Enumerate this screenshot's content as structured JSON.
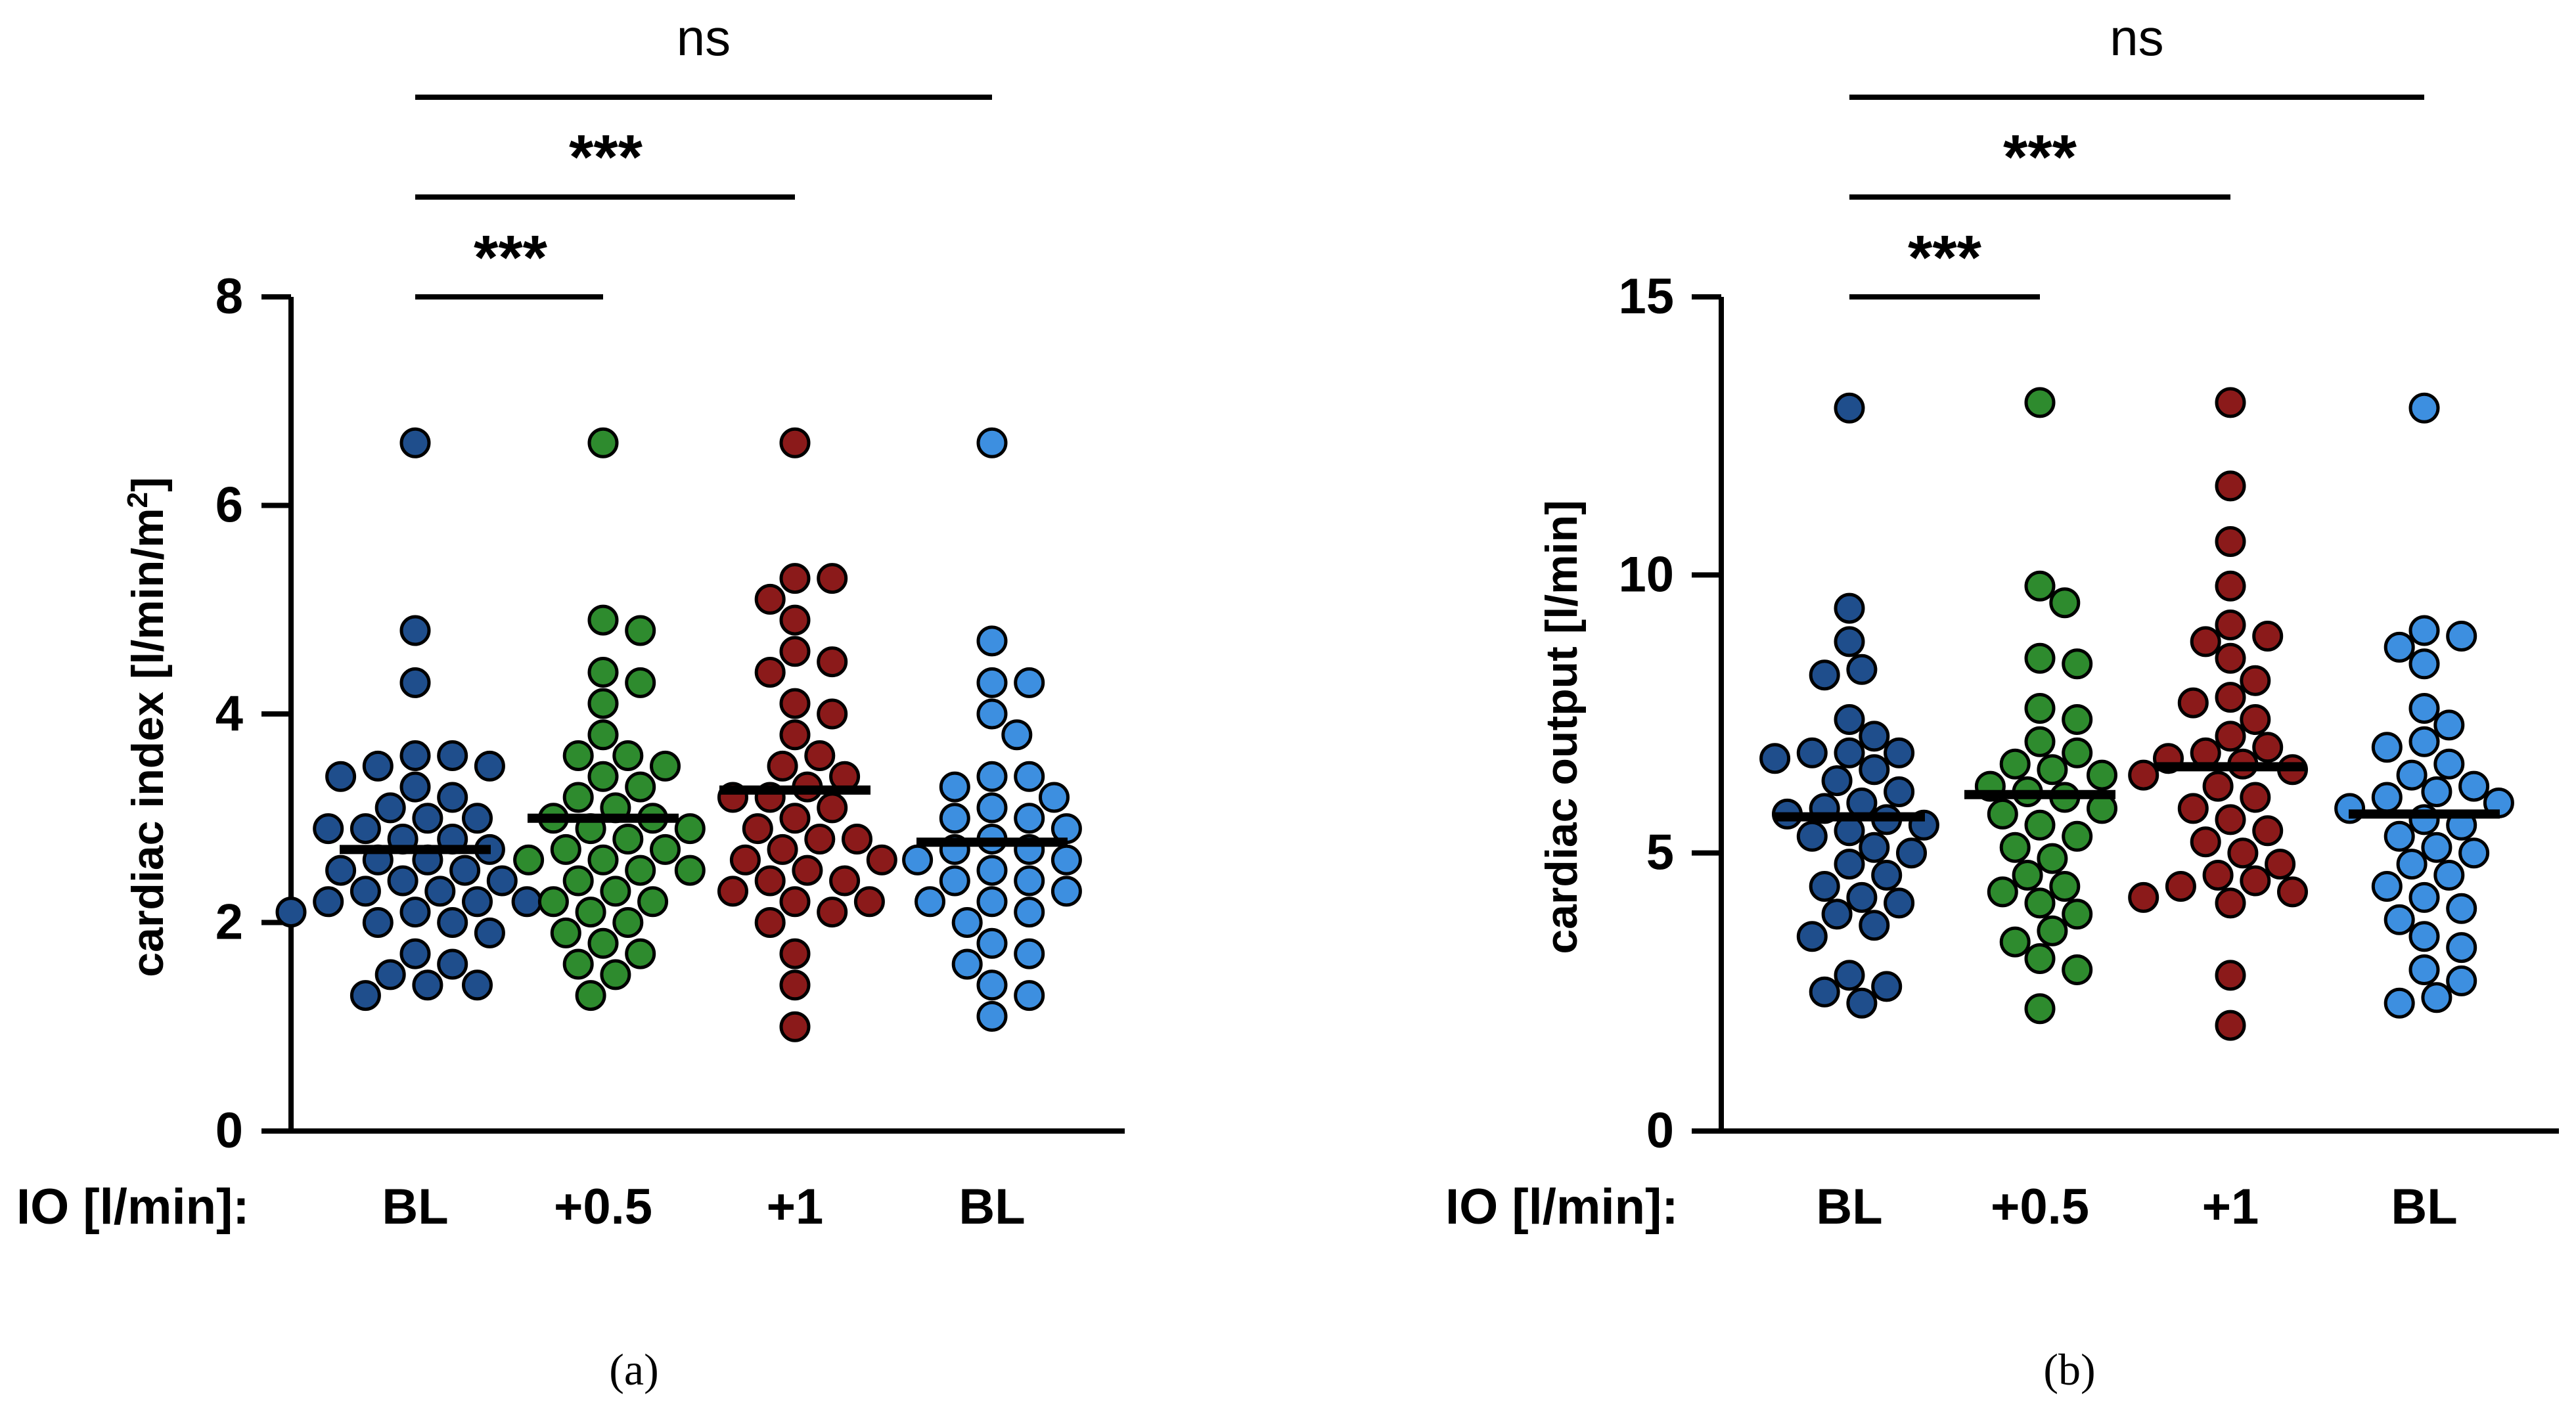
{
  "chart_data": [
    {
      "type": "scatter",
      "panel_label": "(a)",
      "ylabel_main": "cardiac index [l/min/m",
      "ylabel_sup": "2",
      "ylabel_end": "]",
      "ylim": [
        0,
        8
      ],
      "yticks": [
        0,
        2,
        4,
        6,
        8
      ],
      "xaxis_title": "IO [l/min]:",
      "categories": [
        "BL",
        "+0.5",
        "+1",
        "BL"
      ],
      "colors": [
        "#1f4e8c",
        "#2e8b2e",
        "#8b1a1a",
        "#3d8fe0"
      ],
      "series": [
        {
          "name": "BL",
          "mean": 2.7,
          "values": [
            6.6,
            4.8,
            4.3,
            3.6,
            3.6,
            3.5,
            3.5,
            3.4,
            3.3,
            3.2,
            3.1,
            3.0,
            3.0,
            2.9,
            2.9,
            2.8,
            2.8,
            2.7,
            2.6,
            2.6,
            2.5,
            2.5,
            2.4,
            2.4,
            2.3,
            2.3,
            2.2,
            2.2,
            2.2,
            2.1,
            2.1,
            2.0,
            2.0,
            1.9,
            1.7,
            1.6,
            1.5,
            1.4,
            1.4,
            1.3
          ]
        },
        {
          "name": "+0.5",
          "mean": 3.0,
          "values": [
            6.6,
            4.9,
            4.8,
            4.4,
            4.3,
            4.1,
            3.8,
            3.6,
            3.6,
            3.5,
            3.4,
            3.3,
            3.2,
            3.1,
            3.0,
            3.0,
            2.9,
            2.9,
            2.8,
            2.7,
            2.7,
            2.6,
            2.6,
            2.5,
            2.5,
            2.4,
            2.3,
            2.2,
            2.2,
            2.1,
            2.0,
            1.9,
            1.8,
            1.7,
            1.6,
            1.5,
            1.3
          ]
        },
        {
          "name": "+1",
          "mean": 3.27,
          "values": [
            6.6,
            5.3,
            5.3,
            5.1,
            4.9,
            4.6,
            4.5,
            4.4,
            4.1,
            4.0,
            3.8,
            3.6,
            3.5,
            3.4,
            3.3,
            3.2,
            3.2,
            3.1,
            3.0,
            2.9,
            2.8,
            2.8,
            2.7,
            2.6,
            2.6,
            2.5,
            2.4,
            2.4,
            2.3,
            2.2,
            2.2,
            2.1,
            2.0,
            1.7,
            1.4,
            1.0
          ]
        },
        {
          "name": "BL",
          "mean": 2.77,
          "values": [
            6.6,
            4.7,
            4.3,
            4.3,
            4.0,
            3.8,
            3.4,
            3.4,
            3.3,
            3.2,
            3.1,
            3.0,
            3.0,
            2.9,
            2.8,
            2.7,
            2.7,
            2.6,
            2.6,
            2.5,
            2.4,
            2.4,
            2.3,
            2.2,
            2.2,
            2.1,
            2.0,
            1.8,
            1.7,
            1.6,
            1.4,
            1.3,
            1.1
          ]
        }
      ],
      "brackets": [
        {
          "from": 0,
          "to": 1,
          "label": "***"
        },
        {
          "from": 0,
          "to": 2,
          "label": "***"
        },
        {
          "from": 0,
          "to": 3,
          "label": "ns"
        }
      ]
    },
    {
      "type": "scatter",
      "panel_label": "(b)",
      "ylabel_main": "cardiac output [l/min]",
      "ylabel_sup": "",
      "ylabel_end": "",
      "ylim": [
        0,
        15
      ],
      "yticks": [
        0,
        5,
        10,
        15
      ],
      "xaxis_title": "IO [l/min]:",
      "categories": [
        "BL",
        "+0.5",
        "+1",
        "BL"
      ],
      "colors": [
        "#1f4e8c",
        "#2e8b2e",
        "#8b1a1a",
        "#3d8fe0"
      ],
      "series": [
        {
          "name": "BL",
          "mean": 5.65,
          "values": [
            13.0,
            9.4,
            8.8,
            8.3,
            8.2,
            7.4,
            7.1,
            6.8,
            6.8,
            6.8,
            6.7,
            6.5,
            6.3,
            6.1,
            5.9,
            5.8,
            5.7,
            5.6,
            5.5,
            5.4,
            5.3,
            5.1,
            5.0,
            4.8,
            4.6,
            4.4,
            4.2,
            4.1,
            3.9,
            3.7,
            3.5,
            2.8,
            2.6,
            2.5,
            2.3
          ]
        },
        {
          "name": "+0.5",
          "mean": 6.05,
          "values": [
            13.1,
            9.8,
            9.5,
            8.5,
            8.4,
            7.6,
            7.4,
            7.0,
            6.8,
            6.6,
            6.5,
            6.4,
            6.2,
            6.1,
            6.0,
            5.8,
            5.7,
            5.5,
            5.3,
            5.1,
            4.9,
            4.6,
            4.4,
            4.3,
            4.1,
            3.9,
            3.6,
            3.4,
            3.1,
            2.9,
            2.2
          ]
        },
        {
          "name": "+1",
          "mean": 6.55,
          "values": [
            13.1,
            11.6,
            10.6,
            9.8,
            9.1,
            8.9,
            8.8,
            8.5,
            8.1,
            7.8,
            7.7,
            7.4,
            7.1,
            6.9,
            6.8,
            6.7,
            6.6,
            6.5,
            6.4,
            6.2,
            6.0,
            5.8,
            5.6,
            5.4,
            5.2,
            5.0,
            4.8,
            4.6,
            4.5,
            4.4,
            4.3,
            4.2,
            4.1,
            2.8,
            1.9
          ]
        },
        {
          "name": "BL",
          "mean": 5.7,
          "values": [
            13.0,
            9.0,
            8.9,
            8.7,
            8.4,
            7.6,
            7.3,
            7.0,
            6.9,
            6.6,
            6.4,
            6.2,
            6.1,
            6.0,
            5.9,
            5.8,
            5.6,
            5.5,
            5.3,
            5.1,
            5.0,
            4.8,
            4.6,
            4.4,
            4.2,
            4.0,
            3.8,
            3.5,
            3.3,
            2.9,
            2.7,
            2.4,
            2.3
          ]
        }
      ],
      "brackets": [
        {
          "from": 0,
          "to": 1,
          "label": "***"
        },
        {
          "from": 0,
          "to": 2,
          "label": "***"
        },
        {
          "from": 0,
          "to": 3,
          "label": "ns"
        }
      ]
    }
  ]
}
